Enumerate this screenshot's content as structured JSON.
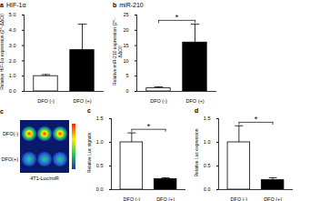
{
  "chart_data": [
    {
      "type": "bar",
      "panel": "a",
      "title": "HIF-1α",
      "ylabel": "Relative HIF-1α expression (2^-ΔΔCt)",
      "categories": [
        "DFO (-)",
        "DFO (+)"
      ],
      "values": [
        1.0,
        2.7
      ],
      "errors": [
        0.1,
        1.7
      ],
      "colors": [
        "#ffffff",
        "#000000"
      ],
      "ylim": [
        0,
        5
      ],
      "yticks": [
        0,
        1,
        2,
        3,
        4,
        5
      ],
      "annotations": []
    },
    {
      "type": "bar",
      "panel": "b",
      "title": "miR-210",
      "ylabel": "Relative miR-210 expression (2^-ΔΔCt)",
      "categories": [
        "DFO (-)",
        "DFO (+)"
      ],
      "values": [
        1.0,
        16
      ],
      "errors": [
        0.5,
        6
      ],
      "colors": [
        "#ffffff",
        "#000000"
      ],
      "ylim": [
        0,
        25
      ],
      "yticks": [
        0,
        5,
        10,
        15,
        20,
        25
      ],
      "annotations": [
        "*"
      ]
    },
    {
      "type": "bar",
      "panel": "c",
      "ylabel": "Relative Luc signals",
      "categories": [
        "DFO (-)",
        "DFO (+)"
      ],
      "values": [
        1.0,
        0.22
      ],
      "errors": [
        0.2,
        0.03
      ],
      "colors": [
        "#ffffff",
        "#000000"
      ],
      "ylim": [
        0,
        1.5
      ],
      "yticks": [
        0,
        0.5,
        1,
        1.5
      ],
      "annotations": [
        "*"
      ]
    },
    {
      "type": "bar",
      "panel": "d",
      "ylabel": "Relative Luc expression",
      "categories": [
        "DFO (-)",
        "DFO (+)"
      ],
      "values": [
        1.0,
        0.2
      ],
      "errors": [
        0.35,
        0.05
      ],
      "colors": [
        "#ffffff",
        "#000000"
      ],
      "ylim": [
        0,
        1.5
      ],
      "yticks": [
        0,
        0.5,
        1,
        1.5
      ],
      "annotations": [
        "*"
      ]
    }
  ],
  "image_panel": {
    "panel": "c",
    "label": "4T1-Luc/miR",
    "rows": [
      "DFO(-)",
      "DFO(+)"
    ]
  }
}
